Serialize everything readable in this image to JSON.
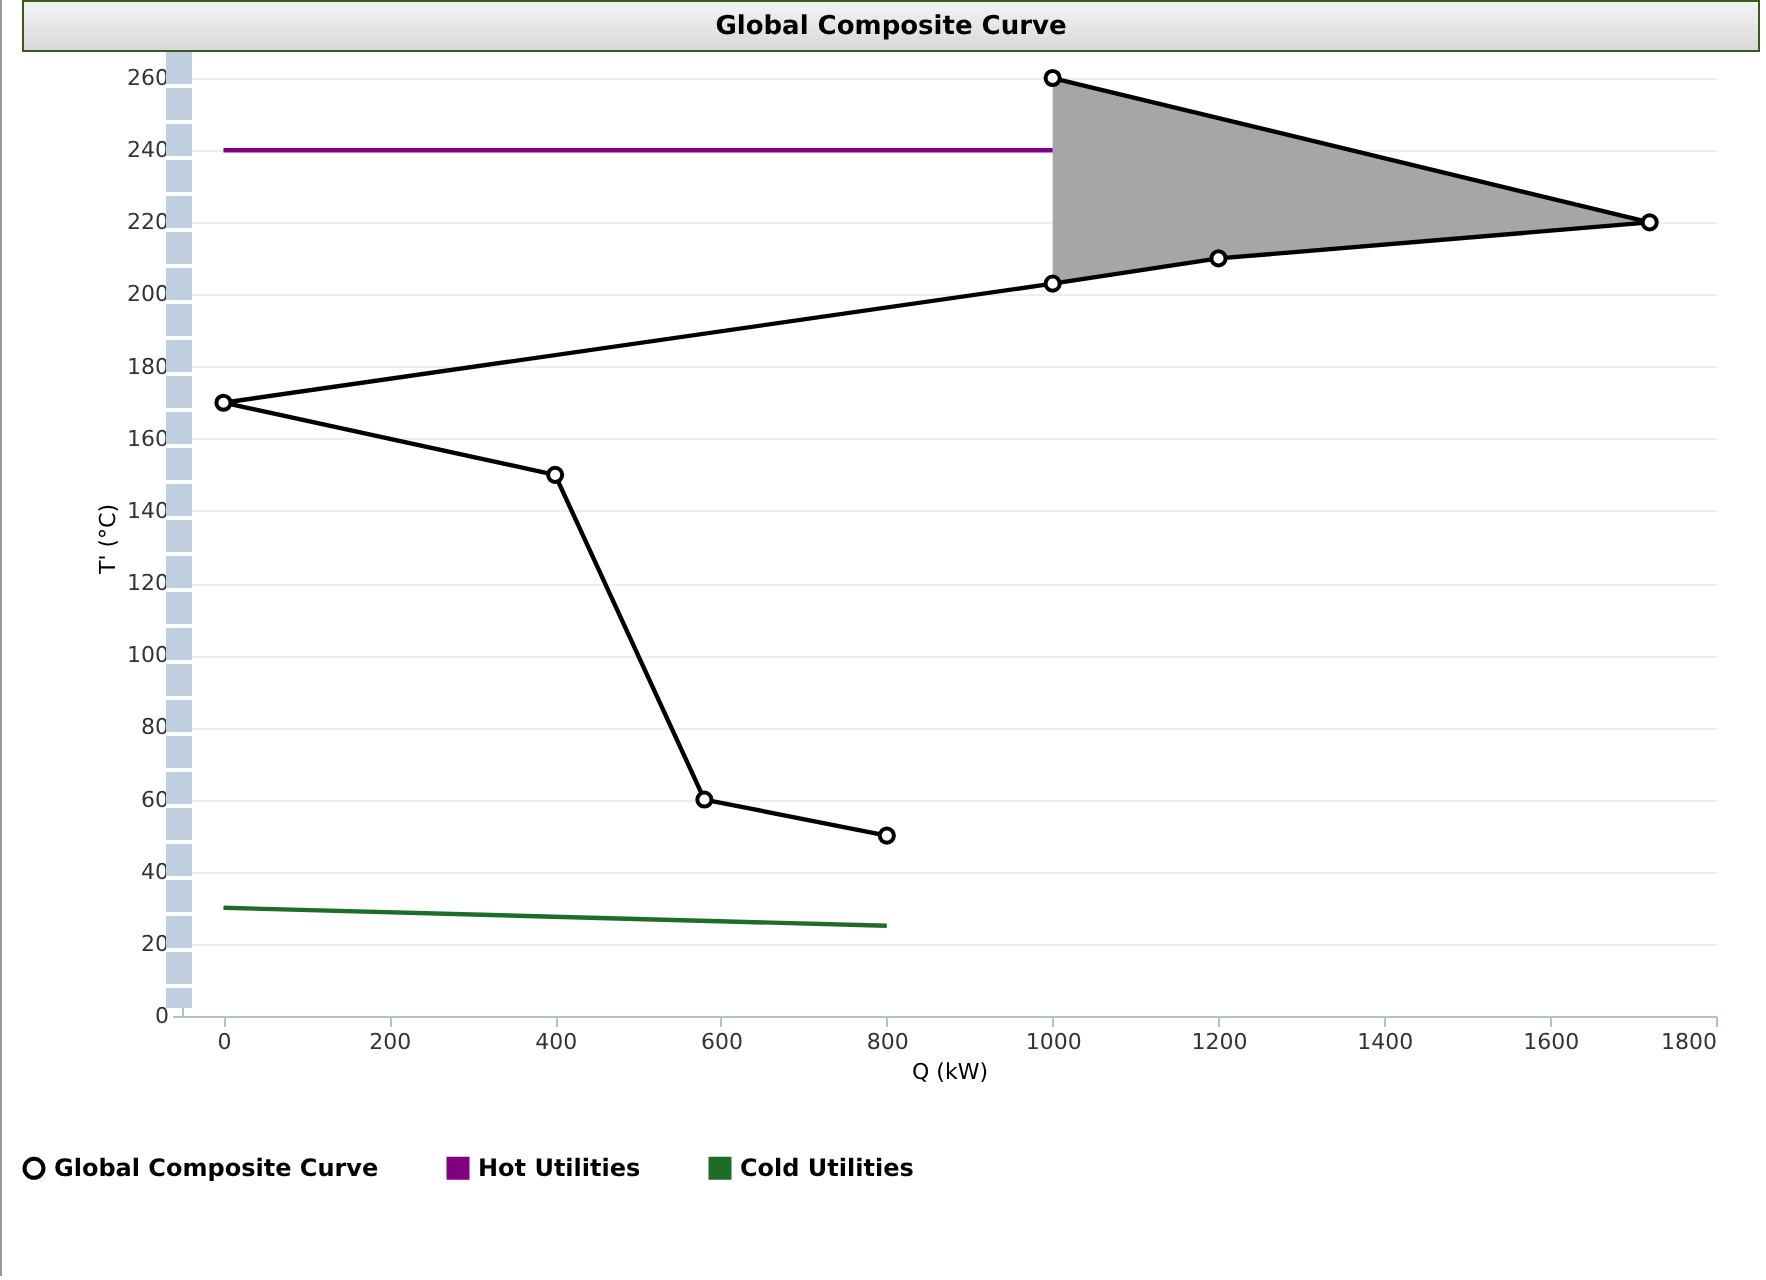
{
  "chart_data": {
    "type": "line",
    "title": "Global Composite Curve",
    "xlabel": "Q (kW)",
    "ylabel": "T' (°C)",
    "xlim": [
      -50,
      1800
    ],
    "xticks": [
      0,
      200,
      400,
      600,
      800,
      1000,
      1200,
      1400,
      1600,
      1800
    ],
    "ylim": [
      0,
      265
    ],
    "yticks": [
      0,
      20,
      40,
      60,
      80,
      100,
      120,
      140,
      160,
      180,
      200,
      220,
      240,
      260
    ],
    "grid": "y",
    "legend": "bottom left",
    "series": [
      {
        "type": "area",
        "color": "#a6a6a6",
        "x": [
          1000,
          1200,
          1720,
          1000
        ],
        "values": [
          203,
          210,
          220,
          260
        ]
      },
      {
        "name": "Global Composite Curve",
        "color": "#000000",
        "marker": "circle",
        "x": [
          800,
          580,
          400,
          0,
          1000,
          1200,
          1720,
          1000
        ],
        "values": [
          50,
          60,
          150,
          170,
          203,
          210,
          220,
          260
        ]
      },
      {
        "name": "Hot Utilities",
        "color": "#800080",
        "marker": "none",
        "x": [
          0,
          1000
        ],
        "values": [
          240,
          240
        ]
      },
      {
        "name": "Cold Utilities",
        "color": "#1e6b2a",
        "marker": "none",
        "x": [
          0,
          800
        ],
        "values": [
          30,
          25
        ]
      }
    ]
  }
}
